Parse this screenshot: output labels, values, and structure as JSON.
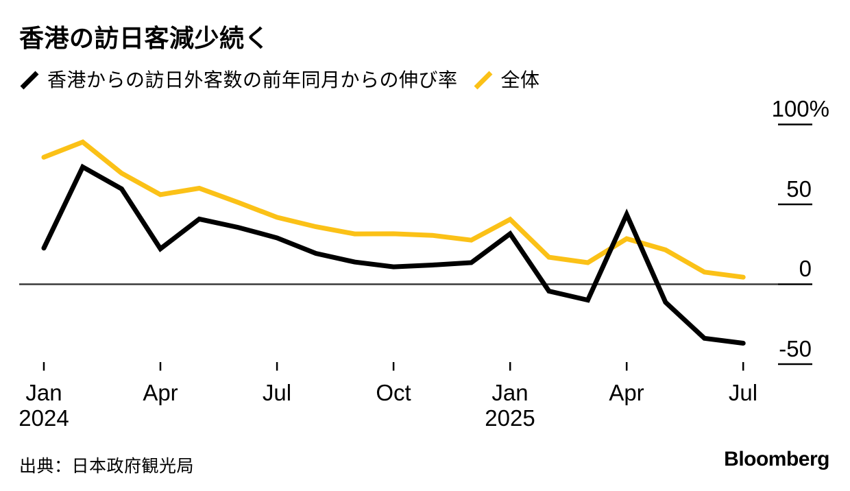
{
  "title": "香港の訪日客減少続く",
  "legend": {
    "items": [
      {
        "label": "香港からの訪日外客数の前年同月からの伸び率",
        "color": "#000000"
      },
      {
        "label": "全体",
        "color": "#FBC117"
      }
    ]
  },
  "source": "出典：日本政府観光局",
  "brand": "Bloomberg",
  "colors": {
    "hk_series": "#000000",
    "total_series": "#FBC117",
    "zero_line": "#3a3a3a",
    "tick": "#000000",
    "background": "#ffffff"
  },
  "chart_data": {
    "type": "line",
    "title": "香港の訪日客減少続く",
    "unit": "%",
    "x": [
      "Jan 2024",
      "Feb 2024",
      "Mar 2024",
      "Apr 2024",
      "May 2024",
      "Jun 2024",
      "Jul 2024",
      "Aug 2024",
      "Sep 2024",
      "Oct 2024",
      "Nov 2024",
      "Dec 2024",
      "Jan 2025",
      "Feb 2025",
      "Mar 2025",
      "Apr 2025",
      "May 2025",
      "Jun 2025",
      "Jul 2025"
    ],
    "series": [
      {
        "name": "香港からの訪日外客数の前年同月からの伸び率",
        "color": "#000000",
        "values": [
          22.6,
          73.4,
          59.7,
          22.2,
          40.8,
          35.6,
          29.0,
          19.3,
          13.9,
          10.9,
          12.0,
          13.5,
          31.6,
          -4.3,
          -9.9,
          43.7,
          -11.3,
          -33.8,
          -36.9
        ]
      },
      {
        "name": "全体",
        "color": "#FBC117",
        "values": [
          79.5,
          89.0,
          69.5,
          56.1,
          60.1,
          51.2,
          41.9,
          36.0,
          31.5,
          31.6,
          30.6,
          27.6,
          40.6,
          16.9,
          13.5,
          28.5,
          21.5,
          7.6,
          4.4
        ]
      }
    ],
    "y_ticks": [
      100,
      50,
      0,
      -50
    ],
    "y_tick_labels": [
      "100%",
      "50",
      "0",
      "-50"
    ],
    "ylim": [
      -60,
      110
    ],
    "x_tick_positions": [
      0,
      3,
      6,
      9,
      12,
      15,
      18
    ],
    "x_tick_labels": [
      {
        "label": "Jan",
        "sub": "2024"
      },
      {
        "label": "Apr"
      },
      {
        "label": "Jul"
      },
      {
        "label": "Oct"
      },
      {
        "label": "Jan",
        "sub": "2025"
      },
      {
        "label": "Apr"
      },
      {
        "label": "Jul"
      }
    ],
    "legend_position": "top-left",
    "grid": false,
    "zero_baseline": true
  }
}
